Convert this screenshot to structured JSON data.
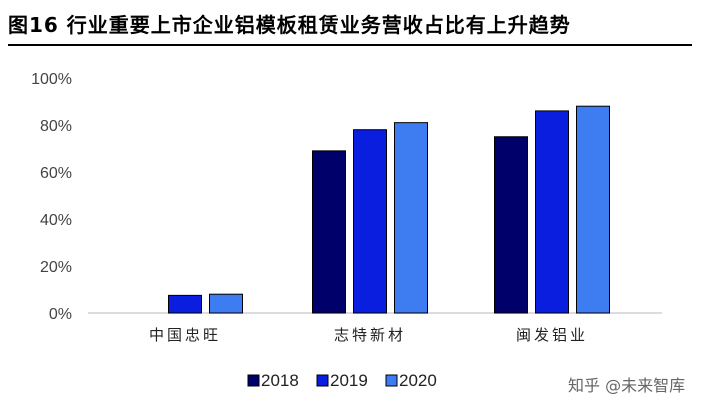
{
  "title": "图16 行业重要上市企业铝模板租赁业务营收占比有上升趋势",
  "watermark": "知乎 @未来智库",
  "colors": {
    "2018": "#00006b",
    "2019": "#0a1ee0",
    "2020": "#3e7cf2"
  },
  "chart_data": {
    "type": "bar",
    "title": "图16 行业重要上市企业铝模板租赁业务营收占比有上升趋势",
    "categories": [
      "中国忠旺",
      "志特新材",
      "闽发铝业"
    ],
    "series": [
      {
        "name": "2018",
        "values": [
          null,
          0.69,
          0.75
        ]
      },
      {
        "name": "2019",
        "values": [
          0.075,
          0.78,
          0.86
        ]
      },
      {
        "name": "2020",
        "values": [
          0.08,
          0.81,
          0.88
        ]
      }
    ],
    "yticks": [
      "0%",
      "20%",
      "40%",
      "60%",
      "80%",
      "100%"
    ],
    "ylim": [
      0,
      1
    ],
    "legend_position": "bottom",
    "grid": false
  }
}
